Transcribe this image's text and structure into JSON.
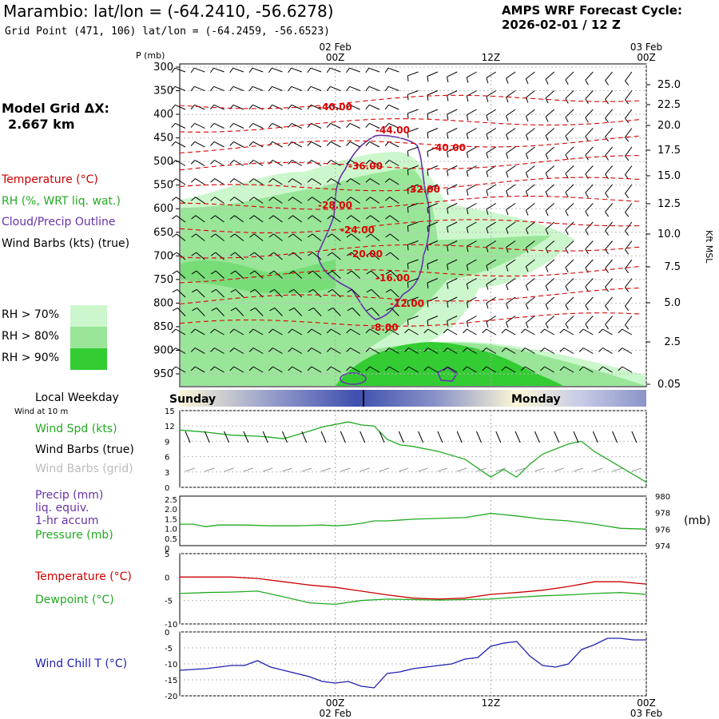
{
  "header": {
    "title": "Marambio:  lat/lon = (-64.2410, -56.6278)",
    "grid_point": "Grid Point (471, 106) lat/lon = (-64.2459, -56.6523)",
    "cycle_line1": "AMPS WRF Forecast Cycle:",
    "cycle_line2": "2026-02-01 / 12  Z"
  },
  "left_panel": {
    "grid_label_1": "Model Grid ΔX:",
    "grid_label_2": "2.667 km",
    "legend_temperature": "Temperature (°C)",
    "legend_rh": "RH (%, WRT liq. wat.)",
    "legend_cloud": "Cloud/Precip Outline",
    "legend_wind": "Wind Barbs (kts) (true)",
    "rh_70": "RH > 70%",
    "rh_80": "RH > 80%",
    "rh_90": "RH > 90%",
    "local_weekday": "Local Weekday",
    "wind_10m": "Wind at 10 m",
    "wind_speed": "Wind Spd (kts)",
    "wind_barbs_true": "Wind Barbs (true)",
    "wind_barbs_grid": "Wind Barbs (grid)",
    "precip_1": "Precip (mm)",
    "precip_2": "liq. equiv.",
    "precip_3": "1-hr accum",
    "pressure": "Pressure (mb)",
    "temperature": "Temperature (°C)",
    "dewpoint": "Dewpoint (°C)",
    "wind_chill": "Wind Chill T (°C)",
    "mb_unit": "(mb)"
  },
  "colors": {
    "temperature": "#cc0000",
    "rh": "#22aa22",
    "cloud": "#6633aa",
    "wind_chill": "#1f1fb0",
    "rh_70": "#ccf7cc",
    "rh_80": "#99e699",
    "rh_90": "#33cc33"
  },
  "chart_data": [
    {
      "type": "contour",
      "name": "time-height cross section",
      "ylabel": "P (mb)",
      "y2label": "Kft MSL",
      "time_ticks": [
        {
          "label": "00Z",
          "date": "02 Feb",
          "hour": 12
        },
        {
          "label": "12Z",
          "date": "",
          "hour": 24
        },
        {
          "label": "00Z",
          "date": "03 Feb",
          "hour": 36
        }
      ],
      "x_range_hours": [
        0,
        36
      ],
      "pressure_ticks": [
        300,
        350,
        400,
        450,
        500,
        550,
        600,
        650,
        700,
        750,
        800,
        850,
        900,
        950
      ],
      "kft_ticks": [
        "25.0",
        "22.5",
        "20.0",
        "17.5",
        "15.0",
        "12.5",
        "10.0",
        "7.5",
        "5.0",
        "2.5",
        "0.05"
      ],
      "temperature_labels": [
        "-40.00",
        "-44.00",
        "-40.00",
        "-36.00",
        "-32.00",
        "-28.00",
        "-24.00",
        "-20.00",
        "-16.00",
        "-12.00",
        "-8.00"
      ]
    },
    {
      "type": "line",
      "name": "wind speed",
      "y_ticks": [
        "15",
        "12",
        "9",
        "6",
        "3",
        "0"
      ],
      "ylim": [
        0,
        15
      ],
      "x_hours": [
        0,
        2,
        4,
        6,
        7,
        8,
        10,
        11,
        12,
        13,
        14,
        15,
        16,
        17,
        18,
        20,
        22,
        24,
        25,
        26,
        27,
        28,
        30,
        31,
        32,
        34,
        36
      ],
      "values": [
        11.2,
        10.8,
        10.2,
        10.0,
        9.8,
        9.5,
        11.0,
        11.8,
        12.3,
        12.8,
        12.2,
        12.0,
        9.4,
        8.3,
        8.0,
        7.0,
        5.5,
        2.0,
        3.5,
        2.0,
        4.5,
        6.5,
        8.5,
        9.0,
        7.0,
        4.0,
        1.0
      ]
    },
    {
      "type": "line",
      "name": "pressure",
      "y_ticks_left": [
        "2.5",
        "2.0",
        "1.5",
        "1.0",
        "0.5",
        "0"
      ],
      "y_ticks_right": [
        "980",
        "978",
        "976",
        "974"
      ],
      "ylim": [
        974,
        980
      ],
      "x_hours": [
        0,
        1,
        2,
        3,
        5,
        7,
        9,
        11,
        12,
        13,
        14,
        15,
        16,
        18,
        20,
        22,
        24,
        26,
        28,
        30,
        32,
        34,
        36
      ],
      "values": [
        976.6,
        976.6,
        976.3,
        976.5,
        976.5,
        976.4,
        976.4,
        976.5,
        976.4,
        976.5,
        976.7,
        977.0,
        977.0,
        977.2,
        977.3,
        977.4,
        977.9,
        977.6,
        977.2,
        977.0,
        976.6,
        976.1,
        976.0
      ]
    },
    {
      "type": "line",
      "name": "temperature and dewpoint",
      "y_ticks": [
        "5",
        "0",
        "-5",
        "-10"
      ],
      "ylim": [
        -10,
        5
      ],
      "series": [
        {
          "name": "Temperature",
          "x_hours": [
            0,
            2,
            4,
            6,
            8,
            10,
            12,
            14,
            16,
            18,
            20,
            22,
            24,
            26,
            28,
            30,
            32,
            34,
            36
          ],
          "values": [
            0.0,
            0.0,
            0.0,
            -0.3,
            -1.0,
            -1.7,
            -2.2,
            -3.0,
            -3.8,
            -4.5,
            -4.7,
            -4.5,
            -3.7,
            -3.3,
            -2.8,
            -2.0,
            -1.0,
            -1.0,
            -1.5
          ]
        },
        {
          "name": "Dewpoint",
          "x_hours": [
            0,
            2,
            4,
            6,
            8,
            10,
            12,
            14,
            16,
            18,
            20,
            22,
            24,
            26,
            28,
            30,
            32,
            34,
            36
          ],
          "values": [
            -3.5,
            -3.3,
            -3.2,
            -3.0,
            -4.2,
            -5.5,
            -5.8,
            -5.0,
            -4.7,
            -4.8,
            -4.9,
            -4.8,
            -4.7,
            -4.3,
            -4.0,
            -3.8,
            -3.5,
            -3.3,
            -3.7
          ]
        }
      ]
    },
    {
      "type": "line",
      "name": "wind chill",
      "y_ticks": [
        "0",
        "-5",
        "-10",
        "-15",
        "-20"
      ],
      "ylim": [
        -20,
        0
      ],
      "x_hours": [
        0,
        2,
        4,
        5,
        6,
        7,
        8,
        10,
        11,
        12,
        13,
        14,
        15,
        16,
        17,
        18,
        20,
        21,
        22,
        23,
        24,
        25,
        26,
        27,
        28,
        29,
        30,
        31,
        32,
        33,
        34,
        35,
        36
      ],
      "values": [
        -12.0,
        -11.5,
        -10.5,
        -10.5,
        -9.0,
        -11.0,
        -12.0,
        -14.0,
        -15.5,
        -16.0,
        -15.5,
        -17.0,
        -17.5,
        -13.0,
        -12.5,
        -11.5,
        -10.5,
        -10.0,
        -8.5,
        -8.0,
        -4.5,
        -3.5,
        -3.0,
        -7.5,
        -10.5,
        -11.0,
        -10.0,
        -5.5,
        -4.0,
        -2.0,
        -2.0,
        -2.5,
        -2.5
      ]
    }
  ],
  "weekday_bar": {
    "left": "Sunday",
    "right": "Monday"
  }
}
